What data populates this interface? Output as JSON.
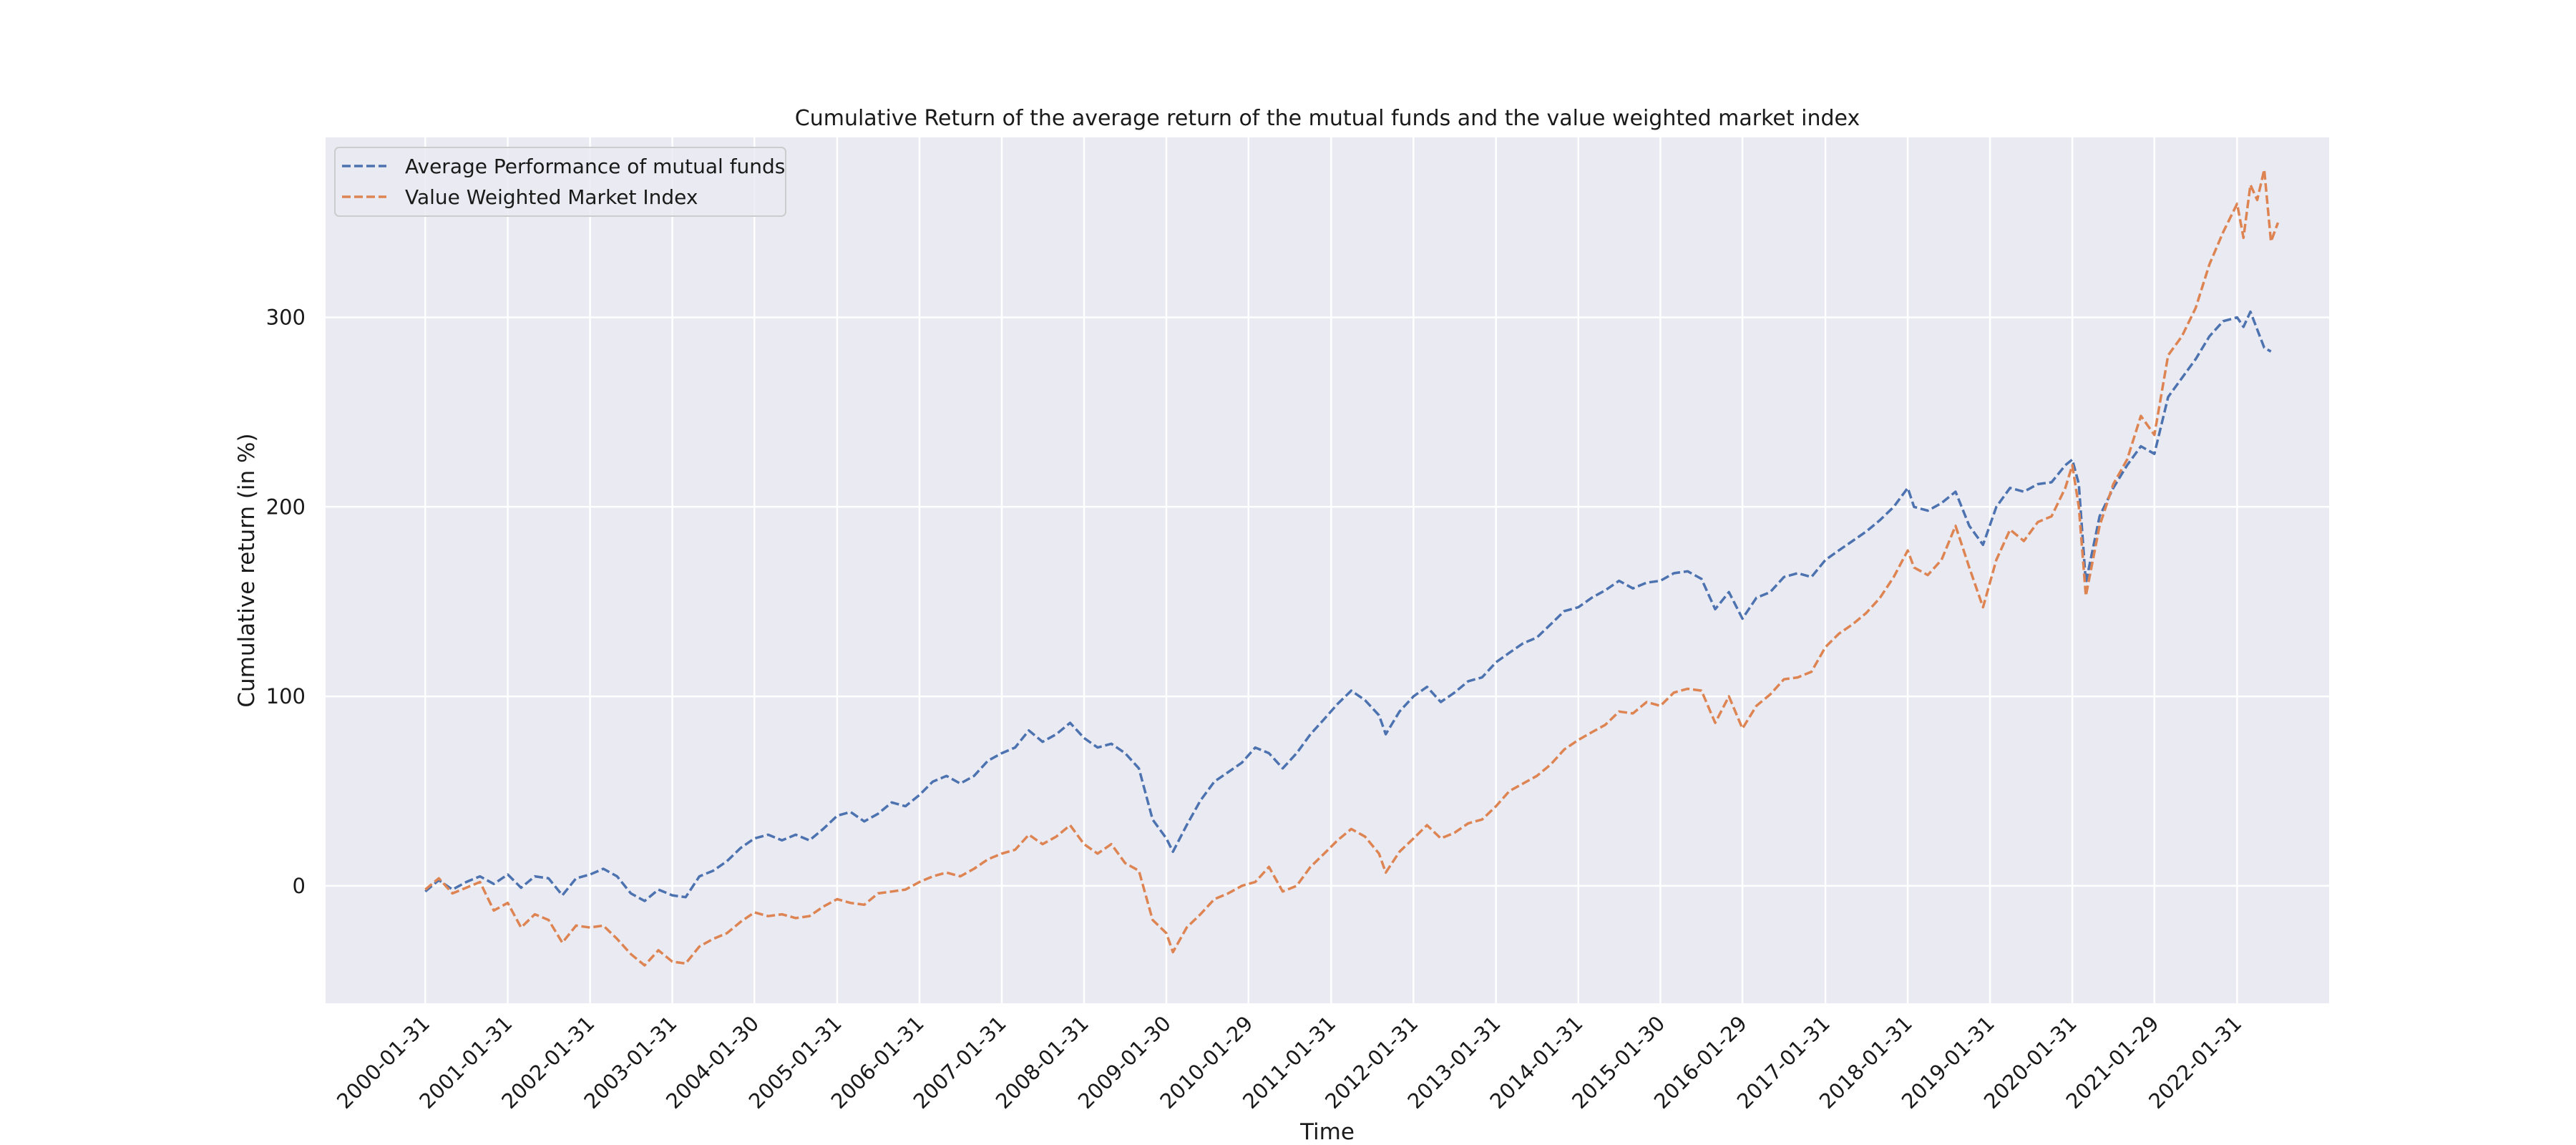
{
  "chart_data": {
    "type": "line",
    "title": "Cumulative Return of the average return of the mutual funds and the value weighted market index",
    "xlabel": "Time",
    "ylabel": "Cumulative return (in %)",
    "xlim": [
      "1998-11-15",
      "2023-03-15"
    ],
    "ylim": [
      -62,
      395
    ],
    "yticks": [
      0,
      100,
      200,
      300
    ],
    "xticks": [
      "2000-01-31",
      "2001-01-31",
      "2002-01-31",
      "2003-01-31",
      "2004-01-30",
      "2005-01-31",
      "2006-01-31",
      "2007-01-31",
      "2008-01-31",
      "2009-01-30",
      "2010-01-29",
      "2011-01-31",
      "2012-01-31",
      "2013-01-31",
      "2014-01-31",
      "2015-01-30",
      "2016-01-29",
      "2017-01-31",
      "2018-01-31",
      "2019-01-31",
      "2020-01-31",
      "2021-01-29",
      "2022-01-31"
    ],
    "grid": true,
    "legend_position": "top-left",
    "series": [
      {
        "name": "Average Performance of mutual funds",
        "color": "#4c72b0",
        "style": "dashed",
        "points": [
          [
            "2000-01-31",
            -3
          ],
          [
            "2000-03-31",
            3
          ],
          [
            "2000-05-31",
            -2
          ],
          [
            "2000-07-31",
            2
          ],
          [
            "2000-09-30",
            5
          ],
          [
            "2000-11-30",
            1
          ],
          [
            "2001-01-31",
            6
          ],
          [
            "2001-03-31",
            -1
          ],
          [
            "2001-05-31",
            5
          ],
          [
            "2001-07-31",
            4
          ],
          [
            "2001-09-30",
            -5
          ],
          [
            "2001-11-30",
            4
          ],
          [
            "2002-01-31",
            6
          ],
          [
            "2002-03-31",
            9
          ],
          [
            "2002-05-31",
            5
          ],
          [
            "2002-07-31",
            -4
          ],
          [
            "2002-09-30",
            -8
          ],
          [
            "2002-11-30",
            -2
          ],
          [
            "2003-01-31",
            -5
          ],
          [
            "2003-03-31",
            -6
          ],
          [
            "2003-05-31",
            5
          ],
          [
            "2003-07-31",
            8
          ],
          [
            "2003-09-30",
            13
          ],
          [
            "2003-11-30",
            20
          ],
          [
            "2004-01-30",
            25
          ],
          [
            "2004-03-31",
            27
          ],
          [
            "2004-05-31",
            24
          ],
          [
            "2004-07-31",
            27
          ],
          [
            "2004-09-30",
            24
          ],
          [
            "2004-11-30",
            30
          ],
          [
            "2005-01-31",
            37
          ],
          [
            "2005-03-31",
            39
          ],
          [
            "2005-05-31",
            34
          ],
          [
            "2005-07-31",
            38
          ],
          [
            "2005-09-30",
            44
          ],
          [
            "2005-11-30",
            42
          ],
          [
            "2006-01-31",
            48
          ],
          [
            "2006-03-31",
            55
          ],
          [
            "2006-05-31",
            58
          ],
          [
            "2006-07-31",
            54
          ],
          [
            "2006-09-30",
            58
          ],
          [
            "2006-11-30",
            66
          ],
          [
            "2007-01-31",
            70
          ],
          [
            "2007-03-31",
            73
          ],
          [
            "2007-05-31",
            82
          ],
          [
            "2007-07-31",
            76
          ],
          [
            "2007-09-30",
            80
          ],
          [
            "2007-11-30",
            86
          ],
          [
            "2008-01-31",
            78
          ],
          [
            "2008-03-31",
            73
          ],
          [
            "2008-05-31",
            75
          ],
          [
            "2008-07-31",
            70
          ],
          [
            "2008-09-30",
            62
          ],
          [
            "2008-11-30",
            35
          ],
          [
            "2009-01-30",
            25
          ],
          [
            "2009-02-28",
            18
          ],
          [
            "2009-04-30",
            32
          ],
          [
            "2009-06-30",
            45
          ],
          [
            "2009-08-31",
            55
          ],
          [
            "2009-10-31",
            60
          ],
          [
            "2009-12-31",
            65
          ],
          [
            "2010-02-28",
            73
          ],
          [
            "2010-04-30",
            70
          ],
          [
            "2010-06-30",
            62
          ],
          [
            "2010-08-31",
            70
          ],
          [
            "2010-10-31",
            80
          ],
          [
            "2010-12-31",
            88
          ],
          [
            "2011-02-28",
            96
          ],
          [
            "2011-04-30",
            103
          ],
          [
            "2011-06-30",
            98
          ],
          [
            "2011-08-31",
            90
          ],
          [
            "2011-09-30",
            80
          ],
          [
            "2011-11-30",
            92
          ],
          [
            "2012-01-31",
            100
          ],
          [
            "2012-03-31",
            105
          ],
          [
            "2012-05-31",
            97
          ],
          [
            "2012-07-31",
            102
          ],
          [
            "2012-09-30",
            108
          ],
          [
            "2012-11-30",
            110
          ],
          [
            "2013-01-31",
            118
          ],
          [
            "2013-03-31",
            123
          ],
          [
            "2013-05-31",
            128
          ],
          [
            "2013-07-31",
            131
          ],
          [
            "2013-09-30",
            138
          ],
          [
            "2013-11-30",
            145
          ],
          [
            "2014-01-31",
            147
          ],
          [
            "2014-03-31",
            152
          ],
          [
            "2014-05-31",
            156
          ],
          [
            "2014-07-31",
            161
          ],
          [
            "2014-09-30",
            157
          ],
          [
            "2014-11-30",
            160
          ],
          [
            "2015-01-30",
            161
          ],
          [
            "2015-03-31",
            165
          ],
          [
            "2015-05-31",
            166
          ],
          [
            "2015-07-31",
            162
          ],
          [
            "2015-09-30",
            146
          ],
          [
            "2015-11-30",
            155
          ],
          [
            "2016-01-29",
            141
          ],
          [
            "2016-03-31",
            152
          ],
          [
            "2016-05-31",
            155
          ],
          [
            "2016-07-31",
            163
          ],
          [
            "2016-09-30",
            165
          ],
          [
            "2016-11-30",
            163
          ],
          [
            "2017-01-31",
            172
          ],
          [
            "2017-03-31",
            177
          ],
          [
            "2017-05-31",
            182
          ],
          [
            "2017-07-31",
            187
          ],
          [
            "2017-09-30",
            193
          ],
          [
            "2017-11-30",
            200
          ],
          [
            "2018-01-31",
            210
          ],
          [
            "2018-02-28",
            200
          ],
          [
            "2018-04-30",
            198
          ],
          [
            "2018-06-30",
            202
          ],
          [
            "2018-08-31",
            208
          ],
          [
            "2018-10-31",
            190
          ],
          [
            "2018-12-31",
            180
          ],
          [
            "2019-02-28",
            200
          ],
          [
            "2019-04-30",
            210
          ],
          [
            "2019-06-30",
            208
          ],
          [
            "2019-08-31",
            212
          ],
          [
            "2019-10-31",
            213
          ],
          [
            "2019-12-31",
            222
          ],
          [
            "2020-01-31",
            225
          ],
          [
            "2020-02-29",
            212
          ],
          [
            "2020-03-31",
            160
          ],
          [
            "2020-05-31",
            195
          ],
          [
            "2020-07-31",
            210
          ],
          [
            "2020-09-30",
            222
          ],
          [
            "2020-11-30",
            232
          ],
          [
            "2021-01-29",
            228
          ],
          [
            "2021-03-31",
            258
          ],
          [
            "2021-05-31",
            268
          ],
          [
            "2021-07-31",
            278
          ],
          [
            "2021-09-30",
            290
          ],
          [
            "2021-11-30",
            298
          ],
          [
            "2022-01-31",
            300
          ],
          [
            "2022-02-28",
            295
          ],
          [
            "2022-03-31",
            303
          ],
          [
            "2022-05-31",
            284
          ],
          [
            "2022-06-30",
            282
          ]
        ]
      },
      {
        "name": "Value Weighted Market Index",
        "color": "#dd8452",
        "style": "dashed",
        "points": [
          [
            "2000-01-31",
            -2
          ],
          [
            "2000-03-31",
            4
          ],
          [
            "2000-05-31",
            -4
          ],
          [
            "2000-07-31",
            -1
          ],
          [
            "2000-09-30",
            2
          ],
          [
            "2000-11-30",
            -13
          ],
          [
            "2001-01-31",
            -9
          ],
          [
            "2001-03-31",
            -22
          ],
          [
            "2001-05-31",
            -15
          ],
          [
            "2001-07-31",
            -18
          ],
          [
            "2001-09-30",
            -30
          ],
          [
            "2001-11-30",
            -21
          ],
          [
            "2002-01-31",
            -22
          ],
          [
            "2002-03-31",
            -21
          ],
          [
            "2002-05-31",
            -28
          ],
          [
            "2002-07-31",
            -36
          ],
          [
            "2002-09-30",
            -42
          ],
          [
            "2002-11-30",
            -34
          ],
          [
            "2003-01-31",
            -40
          ],
          [
            "2003-03-31",
            -41
          ],
          [
            "2003-05-31",
            -32
          ],
          [
            "2003-07-31",
            -28
          ],
          [
            "2003-09-30",
            -25
          ],
          [
            "2003-11-30",
            -19
          ],
          [
            "2004-01-30",
            -14
          ],
          [
            "2004-03-31",
            -16
          ],
          [
            "2004-05-31",
            -15
          ],
          [
            "2004-07-31",
            -17
          ],
          [
            "2004-09-30",
            -16
          ],
          [
            "2004-11-30",
            -11
          ],
          [
            "2005-01-31",
            -7
          ],
          [
            "2005-03-31",
            -9
          ],
          [
            "2005-05-31",
            -10
          ],
          [
            "2005-07-31",
            -4
          ],
          [
            "2005-09-30",
            -3
          ],
          [
            "2005-11-30",
            -2
          ],
          [
            "2006-01-31",
            2
          ],
          [
            "2006-03-31",
            5
          ],
          [
            "2006-05-31",
            7
          ],
          [
            "2006-07-31",
            5
          ],
          [
            "2006-09-30",
            9
          ],
          [
            "2006-11-30",
            14
          ],
          [
            "2007-01-31",
            17
          ],
          [
            "2007-03-31",
            19
          ],
          [
            "2007-05-31",
            27
          ],
          [
            "2007-07-31",
            22
          ],
          [
            "2007-09-30",
            26
          ],
          [
            "2007-11-30",
            32
          ],
          [
            "2008-01-31",
            22
          ],
          [
            "2008-03-31",
            17
          ],
          [
            "2008-05-31",
            22
          ],
          [
            "2008-07-31",
            12
          ],
          [
            "2008-09-30",
            8
          ],
          [
            "2008-11-30",
            -18
          ],
          [
            "2009-01-30",
            -25
          ],
          [
            "2009-02-28",
            -35
          ],
          [
            "2009-04-30",
            -22
          ],
          [
            "2009-06-30",
            -15
          ],
          [
            "2009-08-31",
            -7
          ],
          [
            "2009-10-31",
            -4
          ],
          [
            "2009-12-31",
            0
          ],
          [
            "2010-02-28",
            2
          ],
          [
            "2010-04-30",
            10
          ],
          [
            "2010-06-30",
            -3
          ],
          [
            "2010-08-31",
            0
          ],
          [
            "2010-10-31",
            10
          ],
          [
            "2010-12-31",
            17
          ],
          [
            "2011-02-28",
            24
          ],
          [
            "2011-04-30",
            30
          ],
          [
            "2011-06-30",
            26
          ],
          [
            "2011-08-31",
            17
          ],
          [
            "2011-09-30",
            7
          ],
          [
            "2011-11-30",
            18
          ],
          [
            "2012-01-31",
            25
          ],
          [
            "2012-03-31",
            32
          ],
          [
            "2012-05-31",
            25
          ],
          [
            "2012-07-31",
            28
          ],
          [
            "2012-09-30",
            33
          ],
          [
            "2012-11-30",
            35
          ],
          [
            "2013-01-31",
            42
          ],
          [
            "2013-03-31",
            50
          ],
          [
            "2013-05-31",
            54
          ],
          [
            "2013-07-31",
            58
          ],
          [
            "2013-09-30",
            64
          ],
          [
            "2013-11-30",
            72
          ],
          [
            "2014-01-31",
            77
          ],
          [
            "2014-03-31",
            81
          ],
          [
            "2014-05-31",
            85
          ],
          [
            "2014-07-31",
            92
          ],
          [
            "2014-09-30",
            91
          ],
          [
            "2014-11-30",
            97
          ],
          [
            "2015-01-30",
            95
          ],
          [
            "2015-03-31",
            102
          ],
          [
            "2015-05-31",
            104
          ],
          [
            "2015-07-31",
            103
          ],
          [
            "2015-09-30",
            86
          ],
          [
            "2015-11-30",
            100
          ],
          [
            "2016-01-29",
            83
          ],
          [
            "2016-03-31",
            95
          ],
          [
            "2016-05-31",
            101
          ],
          [
            "2016-07-31",
            109
          ],
          [
            "2016-09-30",
            110
          ],
          [
            "2016-11-30",
            113
          ],
          [
            "2017-01-31",
            126
          ],
          [
            "2017-03-31",
            133
          ],
          [
            "2017-05-31",
            138
          ],
          [
            "2017-07-31",
            144
          ],
          [
            "2017-09-30",
            152
          ],
          [
            "2017-11-30",
            163
          ],
          [
            "2018-01-31",
            177
          ],
          [
            "2018-02-28",
            168
          ],
          [
            "2018-04-30",
            164
          ],
          [
            "2018-06-30",
            172
          ],
          [
            "2018-08-31",
            190
          ],
          [
            "2018-10-31",
            168
          ],
          [
            "2018-12-31",
            147
          ],
          [
            "2019-02-28",
            172
          ],
          [
            "2019-04-30",
            188
          ],
          [
            "2019-06-30",
            182
          ],
          [
            "2019-08-31",
            192
          ],
          [
            "2019-10-31",
            195
          ],
          [
            "2019-12-31",
            210
          ],
          [
            "2020-01-31",
            222
          ],
          [
            "2020-02-29",
            200
          ],
          [
            "2020-03-31",
            153
          ],
          [
            "2020-05-31",
            190
          ],
          [
            "2020-07-31",
            212
          ],
          [
            "2020-09-30",
            225
          ],
          [
            "2020-11-30",
            248
          ],
          [
            "2021-01-29",
            238
          ],
          [
            "2021-03-31",
            280
          ],
          [
            "2021-05-31",
            290
          ],
          [
            "2021-07-31",
            305
          ],
          [
            "2021-09-30",
            328
          ],
          [
            "2021-11-30",
            345
          ],
          [
            "2022-01-31",
            360
          ],
          [
            "2022-02-28",
            342
          ],
          [
            "2022-03-31",
            370
          ],
          [
            "2022-04-30",
            362
          ],
          [
            "2022-05-31",
            378
          ],
          [
            "2022-06-30",
            340
          ],
          [
            "2022-07-31",
            350
          ]
        ]
      }
    ]
  }
}
